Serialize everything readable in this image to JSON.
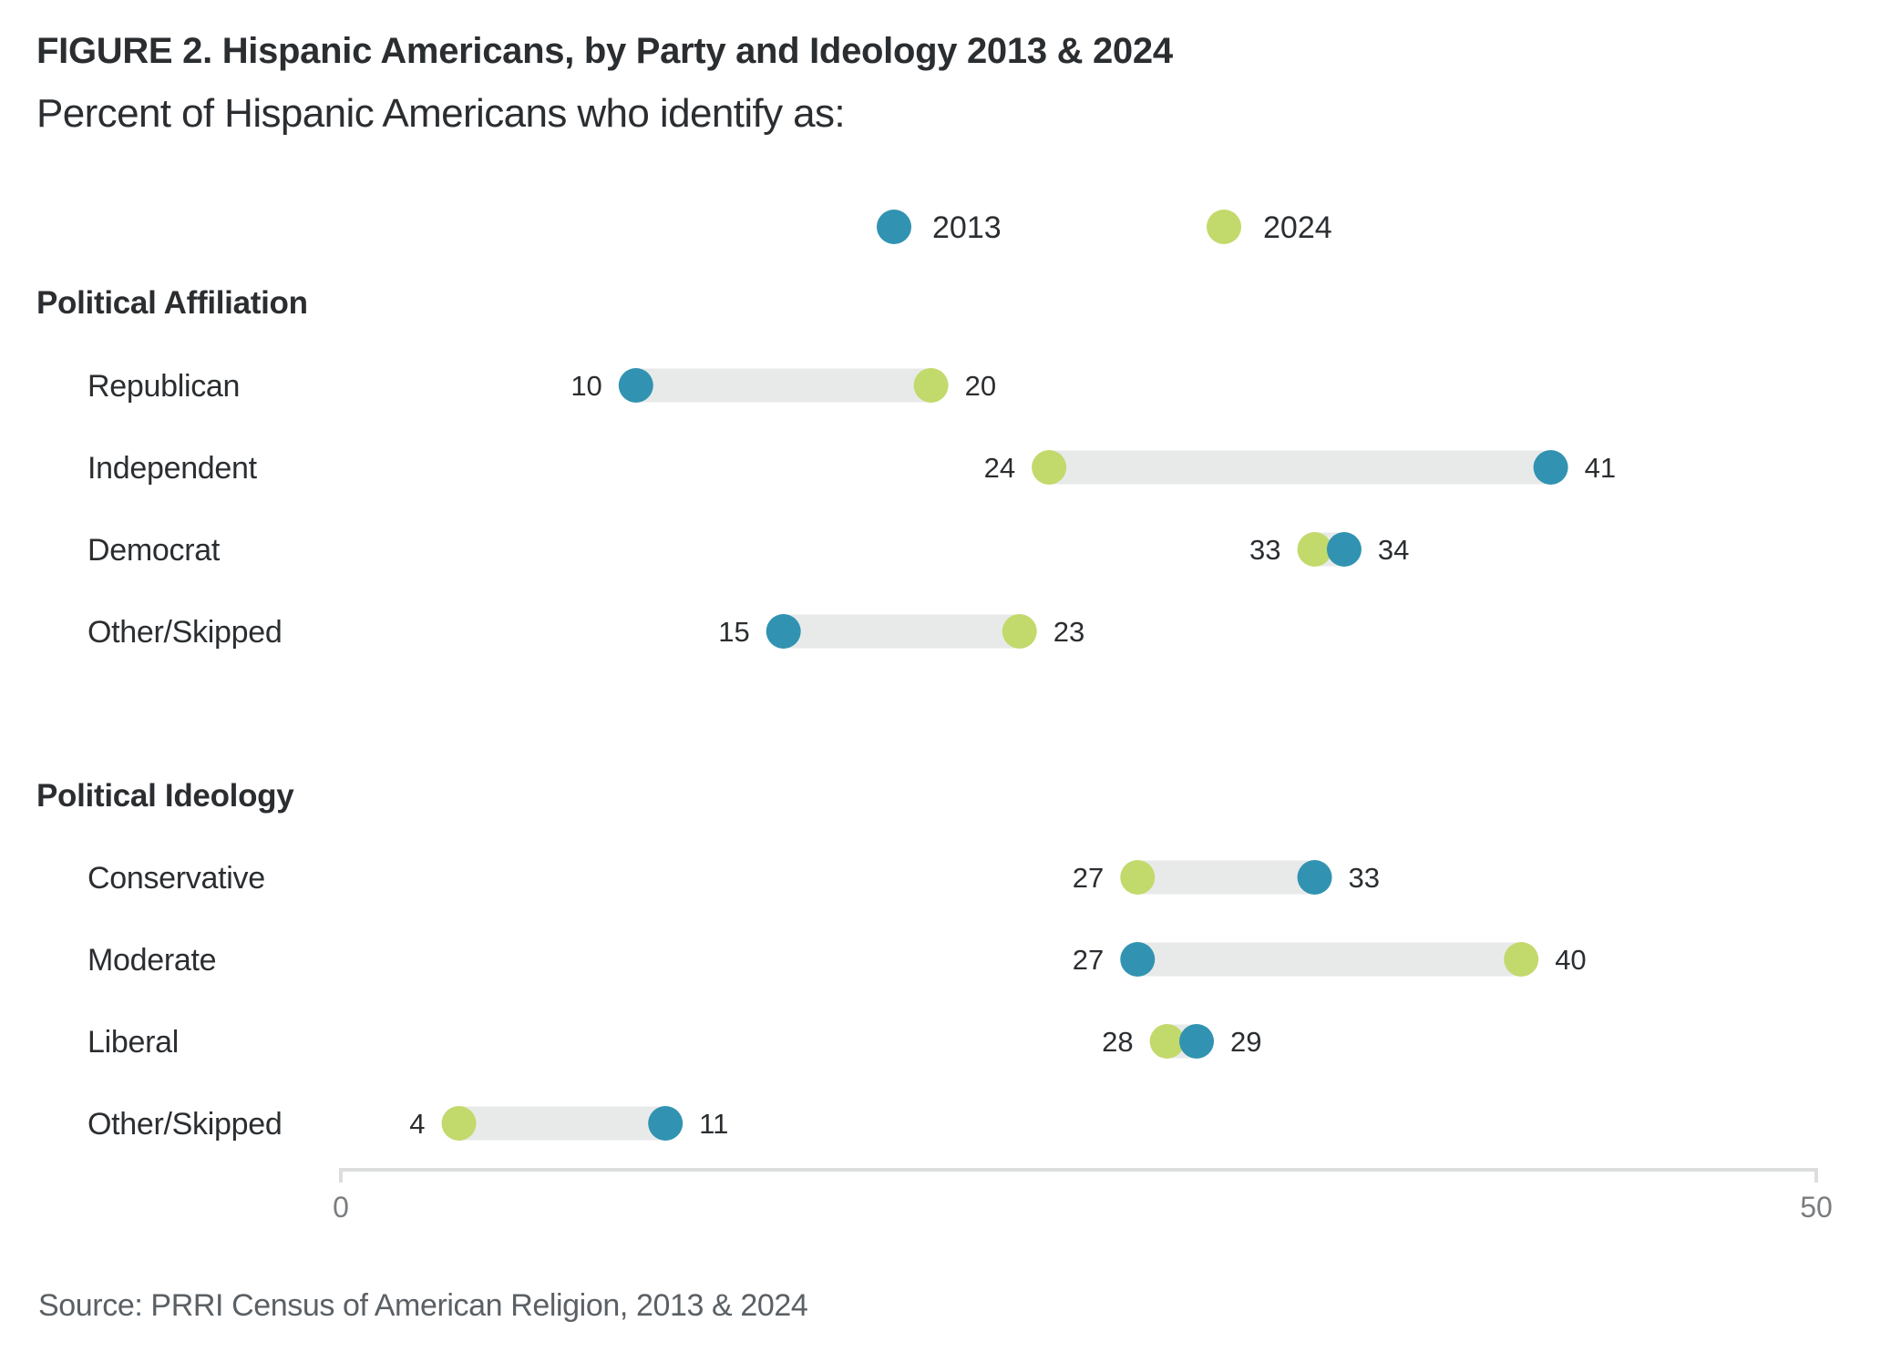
{
  "title": "FIGURE 2. Hispanic Americans, by Party and Ideology 2013 & 2024",
  "subtitle": "Percent of Hispanic Americans who identify as:",
  "source": "Source: PRRI Census of American Religion, 2013 & 2024",
  "colors": {
    "series_2013": "#3193b1",
    "series_2024": "#c2d96c",
    "connector": "#e8eaea",
    "axis": "#dcdddd",
    "text": "#2b2e31",
    "tick_text": "#7a7d80"
  },
  "legend": [
    {
      "label": "2013",
      "color": "#3193b1"
    },
    {
      "label": "2024",
      "color": "#c2d96c"
    }
  ],
  "chart_data": {
    "type": "dumbbell",
    "title": "FIGURE 2. Hispanic Americans, by Party and Ideology 2013 & 2024",
    "subtitle": "Percent of Hispanic Americans who identify as:",
    "xlabel": "",
    "ylabel": "",
    "xlim": [
      0,
      50
    ],
    "xticks": [
      0,
      50
    ],
    "grid": false,
    "legend_position": "top-center",
    "series_names": [
      "2013",
      "2024"
    ],
    "groups": [
      {
        "name": "Political Affiliation",
        "categories": [
          "Republican",
          "Independent",
          "Democrat",
          "Other/Skipped"
        ],
        "series": [
          {
            "name": "2013",
            "values": [
              10,
              41,
              34,
              15
            ]
          },
          {
            "name": "2024",
            "values": [
              20,
              24,
              33,
              23
            ]
          }
        ]
      },
      {
        "name": "Political Ideology",
        "categories": [
          "Conservative",
          "Moderate",
          "Liberal",
          "Other/Skipped"
        ],
        "series": [
          {
            "name": "2013",
            "values": [
              33,
              27,
              29,
              11
            ]
          },
          {
            "name": "2024",
            "values": [
              27,
              40,
              28,
              4
            ]
          }
        ]
      }
    ]
  }
}
